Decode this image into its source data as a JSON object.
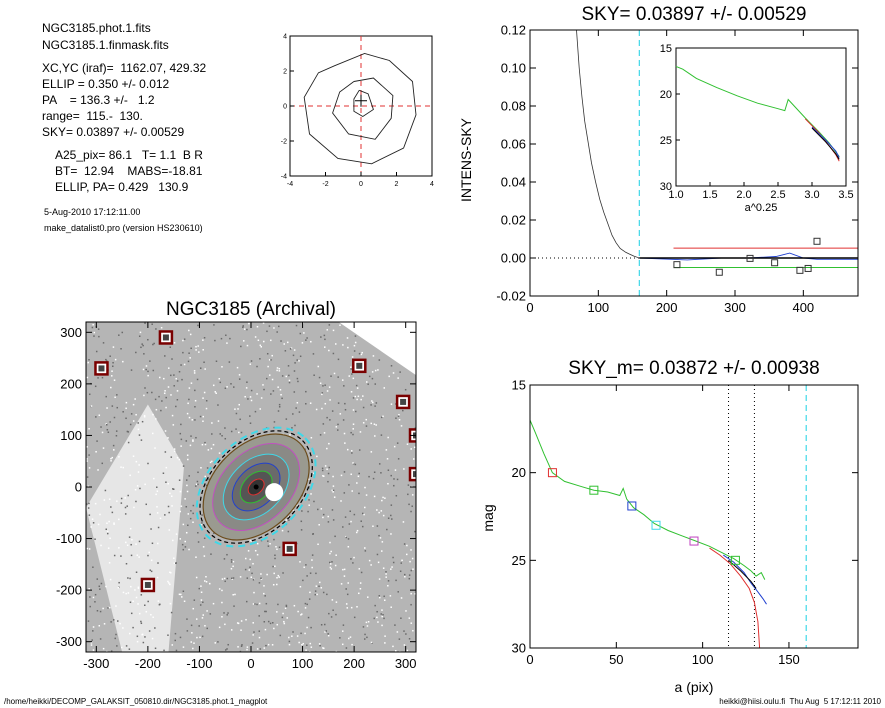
{
  "header": {
    "lines": [
      "NGC3185.phot.1.fits",
      "NGC3185.1.finmask.fits",
      "XC,YC (iraf)=  1162.07, 429.32",
      "ELLIP = 0.350 +/- 0.012",
      "PA    = 136.3 +/-   1.2",
      "range=  115.-  130.",
      "SKY= 0.03897 +/- 0.00529",
      "A25_pix= 86.1   T= 1.1  B R",
      "BT=  12.94    MABS=-18.81",
      "ELLIP, PA= 0.429   130.9"
    ],
    "date": "5-Aug-2010 17:12:11.00",
    "program": "make_datalist0.pro (version HS230610)"
  },
  "footer": {
    "left": "/home/heikki/DECOMP_GALAKSIT_050810.dir/NGC3185.phot.1_magplot",
    "right": "heikki@hiisi.oulu.fi  Thu Aug  5 17:12:11 2010"
  },
  "colors": {
    "cyan": "#40d8e8",
    "red": "#e03030",
    "green": "#30c030",
    "blue": "#2040d0",
    "magenta": "#c040c0",
    "darkred": "#7a0000"
  },
  "chart_data": [
    {
      "id": "contour",
      "type": "contour",
      "title": "",
      "xlim": [
        -4,
        4
      ],
      "ylim": [
        -4,
        4
      ],
      "xticks": [
        -4,
        -2,
        0,
        2,
        4
      ],
      "yticks": [
        -4,
        -2,
        0,
        2,
        4
      ],
      "contours": [
        [
          [
            -1.5,
            2.3
          ],
          [
            0.2,
            3.0
          ],
          [
            1.6,
            2.6
          ],
          [
            2.9,
            1.4
          ],
          [
            3.1,
            -0.5
          ],
          [
            2.4,
            -2.4
          ],
          [
            0.6,
            -3.3
          ],
          [
            -1.3,
            -3.0
          ],
          [
            -2.9,
            -1.6
          ],
          [
            -3.2,
            0.5
          ],
          [
            -2.4,
            1.9
          ],
          [
            -1.5,
            2.3
          ]
        ],
        [
          [
            -0.4,
            1.4
          ],
          [
            0.7,
            1.6
          ],
          [
            1.8,
            0.6
          ],
          [
            1.7,
            -0.7
          ],
          [
            0.8,
            -1.9
          ],
          [
            -0.7,
            -1.6
          ],
          [
            -1.6,
            -0.4
          ],
          [
            -1.2,
            0.8
          ],
          [
            -0.4,
            1.4
          ]
        ],
        [
          [
            -0.1,
            0.9
          ],
          [
            0.4,
            0.7
          ],
          [
            0.7,
            -0.2
          ],
          [
            0.1,
            -0.6
          ],
          [
            -0.4,
            -0.3
          ],
          [
            -0.4,
            0.4
          ],
          [
            -0.1,
            0.9
          ]
        ]
      ]
    },
    {
      "id": "sky",
      "type": "line",
      "title": "SKY= 0.03897 +/- 0.00529",
      "xlabel": "",
      "ylabel": "INTENS-SKY",
      "xlim": [
        0,
        480
      ],
      "ylim": [
        -0.02,
        0.12
      ],
      "xticks": [
        0,
        100,
        200,
        300,
        400
      ],
      "yticks": [
        -0.02,
        0.0,
        0.02,
        0.04,
        0.06,
        0.08,
        0.1,
        0.12
      ],
      "profile": [
        [
          68,
          0.12
        ],
        [
          72,
          0.1
        ],
        [
          76,
          0.085
        ],
        [
          80,
          0.072
        ],
        [
          85,
          0.061
        ],
        [
          90,
          0.05
        ],
        [
          96,
          0.04
        ],
        [
          102,
          0.031
        ],
        [
          108,
          0.024
        ],
        [
          114,
          0.018
        ],
        [
          120,
          0.012
        ],
        [
          126,
          0.008
        ],
        [
          132,
          0.005
        ],
        [
          140,
          0.003
        ],
        [
          146,
          0.002
        ],
        [
          152,
          0.001
        ],
        [
          160,
          0.0
        ]
      ],
      "sky_level_line": {
        "x": [
          0,
          480
        ],
        "y": 0.0
      },
      "sky_black": [
        [
          160,
          0.0
        ],
        [
          480,
          0.0
        ]
      ],
      "red_line": {
        "x": [
          210,
          480
        ],
        "y": 0.0052
      },
      "green_line": {
        "x": [
          210,
          480
        ],
        "y": -0.005
      },
      "blue_line": [
        [
          160,
          0.0
        ],
        [
          230,
          -0.001
        ],
        [
          280,
          0.0
        ],
        [
          320,
          0.0
        ],
        [
          360,
          0.0008
        ],
        [
          380,
          0.0026
        ],
        [
          400,
          0.0
        ],
        [
          420,
          -0.0007
        ],
        [
          480,
          -0.0007
        ]
      ],
      "cyan_vline": 160,
      "squares": [
        [
          215,
          -0.0035
        ],
        [
          277,
          -0.0075
        ],
        [
          322,
          -0.0002
        ],
        [
          358,
          -0.0025
        ],
        [
          395,
          -0.0065
        ],
        [
          407,
          -0.0055
        ],
        [
          420,
          0.0088
        ]
      ],
      "inset": {
        "xlabel": "a^0.25",
        "xlim": [
          1.0,
          3.5
        ],
        "ylim": [
          15,
          30
        ],
        "xticks": [
          1.0,
          1.5,
          2.0,
          2.5,
          3.0,
          3.5
        ],
        "yticks": [
          15,
          20,
          25,
          30
        ],
        "green": [
          [
            1.0,
            17.0
          ],
          [
            1.1,
            17.3
          ],
          [
            1.3,
            18.3
          ],
          [
            1.6,
            19.3
          ],
          [
            1.9,
            20.2
          ],
          [
            2.2,
            21.0
          ],
          [
            2.5,
            21.6
          ],
          [
            2.6,
            21.8
          ],
          [
            2.65,
            20.6
          ],
          [
            2.9,
            22.6
          ],
          [
            3.1,
            24.1
          ],
          [
            3.25,
            25.3
          ],
          [
            3.35,
            26.3
          ],
          [
            3.4,
            26.8
          ]
        ],
        "red": [
          [
            2.9,
            22.7
          ],
          [
            3.1,
            24.2
          ],
          [
            3.25,
            25.6
          ],
          [
            3.35,
            26.6
          ],
          [
            3.4,
            27.3
          ]
        ],
        "blue": [
          [
            3.0,
            23.6
          ],
          [
            3.2,
            25.0
          ],
          [
            3.35,
            26.2
          ],
          [
            3.4,
            26.9
          ]
        ],
        "black": [
          [
            3.0,
            23.7
          ],
          [
            3.2,
            25.2
          ],
          [
            3.35,
            26.5
          ],
          [
            3.4,
            27.1
          ]
        ]
      }
    },
    {
      "id": "image",
      "type": "scatter",
      "title": "NGC3185 (Archival)",
      "xlim": [
        -320,
        320
      ],
      "ylim": [
        -320,
        320
      ],
      "xticks": [
        -300,
        -200,
        -100,
        0,
        100,
        200,
        300
      ],
      "yticks": [
        -300,
        -200,
        -100,
        0,
        100,
        200,
        300
      ],
      "masked_stars": [
        [
          -290,
          230
        ],
        [
          -165,
          290
        ],
        [
          210,
          235
        ],
        [
          295,
          165
        ],
        [
          320,
          100
        ],
        [
          320,
          25
        ],
        [
          75,
          -120
        ],
        [
          -200,
          -190
        ]
      ],
      "ellipse": {
        "cx": 10,
        "cy": 0,
        "a": 120,
        "b": 82,
        "pa_deg": -45
      }
    },
    {
      "id": "mag",
      "type": "line",
      "title": "SKY_m=  0.03872 +/- 0.00938",
      "xlabel": "a (pix)",
      "ylabel": "mag",
      "xlim": [
        0,
        190
      ],
      "ylim": [
        15,
        30
      ],
      "xticks": [
        0,
        50,
        100,
        150
      ],
      "yticks": [
        15,
        20,
        25,
        30
      ],
      "green": [
        [
          0,
          17.0
        ],
        [
          3,
          17.7
        ],
        [
          8,
          18.9
        ],
        [
          13,
          20.0
        ],
        [
          20,
          20.5
        ],
        [
          30,
          20.8
        ],
        [
          37,
          21.0
        ],
        [
          45,
          21.1
        ],
        [
          52,
          21.3
        ],
        [
          54,
          20.9
        ],
        [
          56,
          21.5
        ],
        [
          60,
          22.0
        ],
        [
          66,
          22.4
        ],
        [
          72,
          22.9
        ],
        [
          80,
          23.3
        ],
        [
          88,
          23.6
        ],
        [
          96,
          23.9
        ],
        [
          104,
          24.2
        ],
        [
          112,
          24.6
        ],
        [
          118,
          24.9
        ],
        [
          124,
          25.3
        ],
        [
          128,
          25.6
        ],
        [
          131,
          25.9
        ],
        [
          134,
          25.7
        ],
        [
          136,
          26.1
        ]
      ],
      "red": [
        [
          104,
          24.3
        ],
        [
          110,
          24.7
        ],
        [
          116,
          25.2
        ],
        [
          122,
          25.9
        ],
        [
          127,
          26.6
        ],
        [
          130,
          27.4
        ],
        [
          132,
          28.5
        ],
        [
          133,
          30.0
        ]
      ],
      "blue": [
        [
          112,
          24.7
        ],
        [
          118,
          25.1
        ],
        [
          124,
          25.7
        ],
        [
          128,
          26.3
        ],
        [
          132,
          26.8
        ],
        [
          135,
          27.2
        ],
        [
          137,
          27.5
        ]
      ],
      "black": [
        [
          115,
          25.0
        ],
        [
          122,
          25.6
        ],
        [
          128,
          26.2
        ],
        [
          131,
          26.6
        ]
      ],
      "squares": [
        {
          "x": 13,
          "y": 20.0,
          "c": "red"
        },
        {
          "x": 37,
          "y": 21.0,
          "c": "green"
        },
        {
          "x": 59,
          "y": 21.9,
          "c": "blue"
        },
        {
          "x": 73,
          "y": 23.0,
          "c": "cyan"
        },
        {
          "x": 95,
          "y": 23.9,
          "c": "magenta"
        },
        {
          "x": 119,
          "y": 25.0,
          "c": "green"
        }
      ],
      "vlines_dotted": [
        115,
        130
      ],
      "vline_cyan": 160
    }
  ]
}
